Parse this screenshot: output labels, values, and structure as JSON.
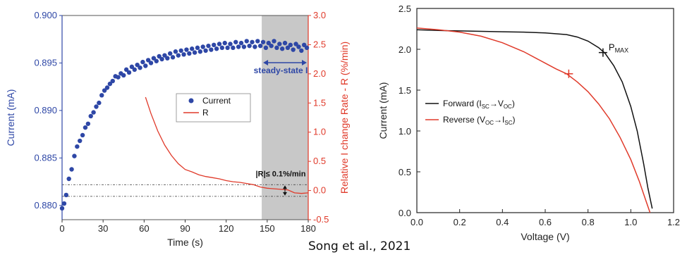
{
  "caption": "Song et al., 2021",
  "chart_data": [
    {
      "type": "scatter",
      "xlabel": "Time (s)",
      "ylabel": "Current (mA)",
      "ylabel_right": "Relative I change Rate - R (%/min)",
      "xlim": [
        0,
        180
      ],
      "ylim": [
        0.8785,
        0.9
      ],
      "ylim_right": [
        -0.5,
        3.0
      ],
      "x_ticks": [
        "0",
        "30",
        "60",
        "90",
        "120",
        "150",
        "180"
      ],
      "y_ticks": [
        "0.880",
        "0.885",
        "0.890",
        "0.895",
        "0.900"
      ],
      "y_ticks_right": [
        "-0.5",
        "0.0",
        "0.5",
        "1.0",
        "1.5",
        "2.0",
        "2.5",
        "3.0"
      ],
      "colors": {
        "current": "#2e47a6",
        "rate": "#e03a2a",
        "shade": "#c8c8c8"
      },
      "shaded_region": {
        "x": [
          146,
          180
        ],
        "label": "steady-state I"
      },
      "threshold_annotation": {
        "label": "|R|≤ 0.1%/min",
        "y_lines": [
          0.1,
          -0.1
        ]
      },
      "series": [
        {
          "name": "Current",
          "marker": "circle",
          "points": [
            [
              0,
              0.8797
            ],
            [
              1.5,
              0.8802
            ],
            [
              3,
              0.8811
            ],
            [
              5,
              0.8828
            ],
            [
              7,
              0.8838
            ],
            [
              9,
              0.8852
            ],
            [
              11,
              0.8862
            ],
            [
              13,
              0.8868
            ],
            [
              15,
              0.8874
            ],
            [
              17,
              0.8882
            ],
            [
              19,
              0.8886
            ],
            [
              21,
              0.8894
            ],
            [
              23,
              0.8898
            ],
            [
              25,
              0.8904
            ],
            [
              27,
              0.8908
            ],
            [
              29,
              0.8916
            ],
            [
              31,
              0.8921
            ],
            [
              33,
              0.8924
            ],
            [
              35,
              0.8928
            ],
            [
              37,
              0.8931
            ],
            [
              39,
              0.8936
            ],
            [
              41,
              0.8935
            ],
            [
              43,
              0.8939
            ],
            [
              45,
              0.8937
            ],
            [
              47,
              0.8943
            ],
            [
              49,
              0.894
            ],
            [
              51,
              0.8946
            ],
            [
              53,
              0.8943
            ],
            [
              55,
              0.8948
            ],
            [
              57,
              0.8945
            ],
            [
              59,
              0.8951
            ],
            [
              61,
              0.8947
            ],
            [
              63,
              0.8953
            ],
            [
              65,
              0.895
            ],
            [
              67,
              0.8955
            ],
            [
              69,
              0.8952
            ],
            [
              71,
              0.8957
            ],
            [
              73,
              0.8954
            ],
            [
              75,
              0.8958
            ],
            [
              77,
              0.8955
            ],
            [
              79,
              0.896
            ],
            [
              81,
              0.8956
            ],
            [
              83,
              0.8962
            ],
            [
              85,
              0.8958
            ],
            [
              87,
              0.8963
            ],
            [
              89,
              0.8959
            ],
            [
              91,
              0.8964
            ],
            [
              93,
              0.896
            ],
            [
              95,
              0.8965
            ],
            [
              97,
              0.8961
            ],
            [
              99,
              0.8966
            ],
            [
              101,
              0.8962
            ],
            [
              103,
              0.8967
            ],
            [
              105,
              0.8963
            ],
            [
              107,
              0.8968
            ],
            [
              109,
              0.8964
            ],
            [
              111,
              0.8969
            ],
            [
              113,
              0.8965
            ],
            [
              115,
              0.897
            ],
            [
              117,
              0.8966
            ],
            [
              119,
              0.8971
            ],
            [
              121,
              0.8966
            ],
            [
              123,
              0.897
            ],
            [
              125,
              0.8966
            ],
            [
              127,
              0.8972
            ],
            [
              129,
              0.8967
            ],
            [
              131,
              0.8971
            ],
            [
              133,
              0.8967
            ],
            [
              135,
              0.8973
            ],
            [
              137,
              0.8968
            ],
            [
              139,
              0.8972
            ],
            [
              141,
              0.8967
            ],
            [
              143,
              0.8973
            ],
            [
              145,
              0.8968
            ],
            [
              147,
              0.8972
            ],
            [
              149,
              0.8966
            ],
            [
              151,
              0.8971
            ],
            [
              153,
              0.8968
            ],
            [
              155,
              0.8973
            ],
            [
              157,
              0.8966
            ],
            [
              159,
              0.897
            ],
            [
              161,
              0.8965
            ],
            [
              163,
              0.8971
            ],
            [
              165,
              0.8966
            ],
            [
              167,
              0.8969
            ],
            [
              169,
              0.8964
            ],
            [
              171,
              0.897
            ],
            [
              173,
              0.8967
            ],
            [
              175,
              0.8963
            ],
            [
              177,
              0.8969
            ],
            [
              179,
              0.8966
            ]
          ]
        },
        {
          "name": "R",
          "axis": "right",
          "line": true,
          "points": [
            [
              61,
              1.6
            ],
            [
              65,
              1.32
            ],
            [
              70,
              1.02
            ],
            [
              75,
              0.78
            ],
            [
              80,
              0.6
            ],
            [
              85,
              0.46
            ],
            [
              90,
              0.36
            ],
            [
              95,
              0.32
            ],
            [
              100,
              0.27
            ],
            [
              105,
              0.24
            ],
            [
              110,
              0.22
            ],
            [
              115,
              0.2
            ],
            [
              120,
              0.17
            ],
            [
              125,
              0.15
            ],
            [
              130,
              0.14
            ],
            [
              135,
              0.12
            ],
            [
              140,
              0.1
            ],
            [
              145,
              0.06
            ],
            [
              150,
              0.04
            ],
            [
              155,
              0.03
            ],
            [
              160,
              0.02
            ],
            [
              165,
              0.01
            ],
            [
              170,
              -0.04
            ],
            [
              175,
              -0.05
            ],
            [
              180,
              -0.04
            ]
          ]
        }
      ]
    },
    {
      "type": "line",
      "xlabel": "Voltage (V)",
      "ylabel": "Current (mA)",
      "xlim": [
        0,
        1.2
      ],
      "ylim": [
        0,
        2.5
      ],
      "x_ticks": [
        "0.0",
        "0.2",
        "0.4",
        "0.6",
        "0.8",
        "1.0",
        "1.2"
      ],
      "y_ticks": [
        "0.0",
        "0.5",
        "1.0",
        "1.5",
        "2.0",
        "2.5"
      ],
      "colors": {
        "forward": "#111111",
        "reverse": "#e03a2a"
      },
      "pmax_label": {
        "main": "P",
        "sub": "MAX"
      },
      "series": [
        {
          "name": "Forward (ISC→VOC)",
          "legend": {
            "a": "Forward (I",
            "b": "SC",
            "c": "→V",
            "d": "OC",
            "e": ")"
          },
          "points": [
            [
              0,
              2.24
            ],
            [
              0.1,
              2.23
            ],
            [
              0.2,
              2.225
            ],
            [
              0.3,
              2.22
            ],
            [
              0.4,
              2.215
            ],
            [
              0.5,
              2.21
            ],
            [
              0.6,
              2.2
            ],
            [
              0.7,
              2.18
            ],
            [
              0.75,
              2.15
            ],
            [
              0.8,
              2.1
            ],
            [
              0.85,
              2.02
            ],
            [
              0.88,
              1.95
            ],
            [
              0.92,
              1.8
            ],
            [
              0.96,
              1.6
            ],
            [
              1.0,
              1.3
            ],
            [
              1.03,
              1.0
            ],
            [
              1.06,
              0.6
            ],
            [
              1.08,
              0.3
            ],
            [
              1.1,
              0.05
            ]
          ],
          "pmax": [
            0.87,
            1.96
          ]
        },
        {
          "name": "Reverse (VOC→ISC)",
          "legend": {
            "a": "Reverse (V",
            "b": "OC",
            "c": "→I",
            "d": "SC",
            "e": ")"
          },
          "points": [
            [
              0,
              2.26
            ],
            [
              0.1,
              2.24
            ],
            [
              0.2,
              2.21
            ],
            [
              0.3,
              2.16
            ],
            [
              0.4,
              2.08
            ],
            [
              0.5,
              1.97
            ],
            [
              0.6,
              1.83
            ],
            [
              0.65,
              1.76
            ],
            [
              0.7,
              1.7
            ],
            [
              0.75,
              1.6
            ],
            [
              0.8,
              1.48
            ],
            [
              0.85,
              1.33
            ],
            [
              0.9,
              1.15
            ],
            [
              0.95,
              0.92
            ],
            [
              1.0,
              0.65
            ],
            [
              1.04,
              0.38
            ],
            [
              1.07,
              0.15
            ],
            [
              1.09,
              0.0
            ]
          ],
          "pmax": [
            0.71,
            1.7
          ]
        }
      ]
    }
  ]
}
